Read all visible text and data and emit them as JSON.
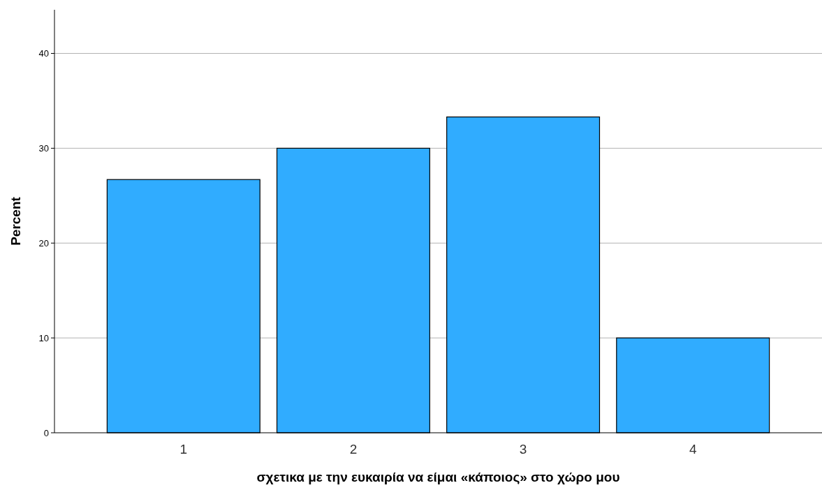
{
  "chart_data": {
    "type": "bar",
    "xlabel": "σχετικα με την ευκαιρία να είμαι «κάποιος» στο χώρο μου",
    "ylabel": "Percent",
    "categories": [
      "1",
      "2",
      "3",
      "4"
    ],
    "values": [
      26.7,
      30,
      33.3,
      10
    ],
    "color": "#30acff",
    "ylim": [
      0,
      44.6
    ],
    "yticks": [
      0,
      10,
      20,
      30,
      40
    ],
    "grid": "y"
  }
}
